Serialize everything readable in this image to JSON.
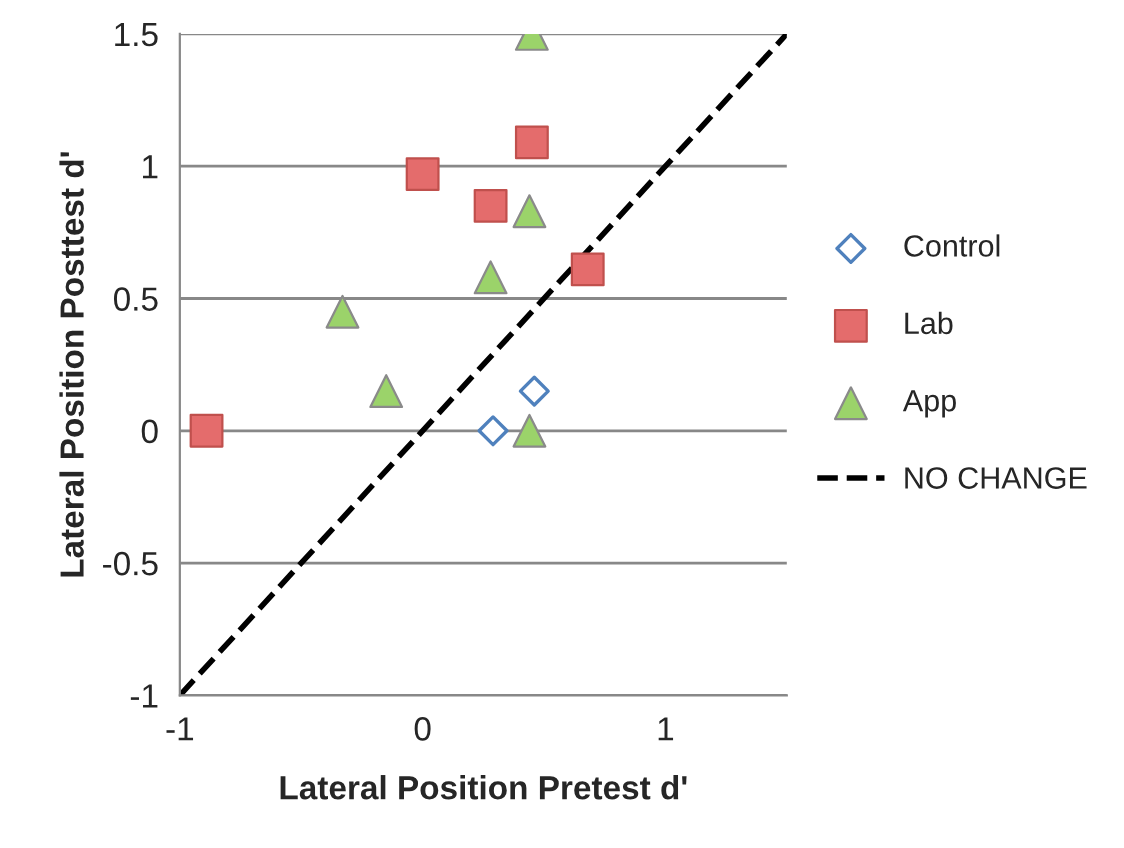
{
  "chart_data": {
    "type": "scatter",
    "xlabel": "Lateral Position Pretest d'",
    "ylabel": "Lateral Position Posttest d'",
    "xlim": [
      -1,
      1.5
    ],
    "ylim": [
      -1,
      1.5
    ],
    "xticks": [
      -1,
      0,
      1
    ],
    "yticks": [
      -1,
      -0.5,
      0,
      0.5,
      1,
      1.5
    ],
    "grid": "y",
    "legend": "right",
    "series": [
      {
        "name": "Control",
        "color": "#4f81bd",
        "marker": "diamond",
        "x": [
          0.29,
          0.46
        ],
        "values": [
          0,
          0.15
        ]
      },
      {
        "name": "Lab",
        "color": "#e46c6c",
        "marker": "square",
        "x": [
          -0.89,
          0.0,
          0.28,
          0.45,
          0.68
        ],
        "values": [
          0,
          0.97,
          0.85,
          1.09,
          0.61
        ]
      },
      {
        "name": "App",
        "color": "#9bd36a",
        "marker": "triangle",
        "x": [
          0.45,
          0.44,
          0.28,
          -0.33,
          -0.15,
          0.44
        ],
        "values": [
          1.5,
          0.83,
          0.58,
          0.45,
          0.15,
          0
        ]
      },
      {
        "name": "NO CHANGE",
        "type": "line",
        "color": "#000000",
        "line_style": "dashed",
        "marker": "none",
        "x": [
          -1,
          1.5
        ],
        "values": [
          -1,
          1.5
        ]
      }
    ]
  }
}
